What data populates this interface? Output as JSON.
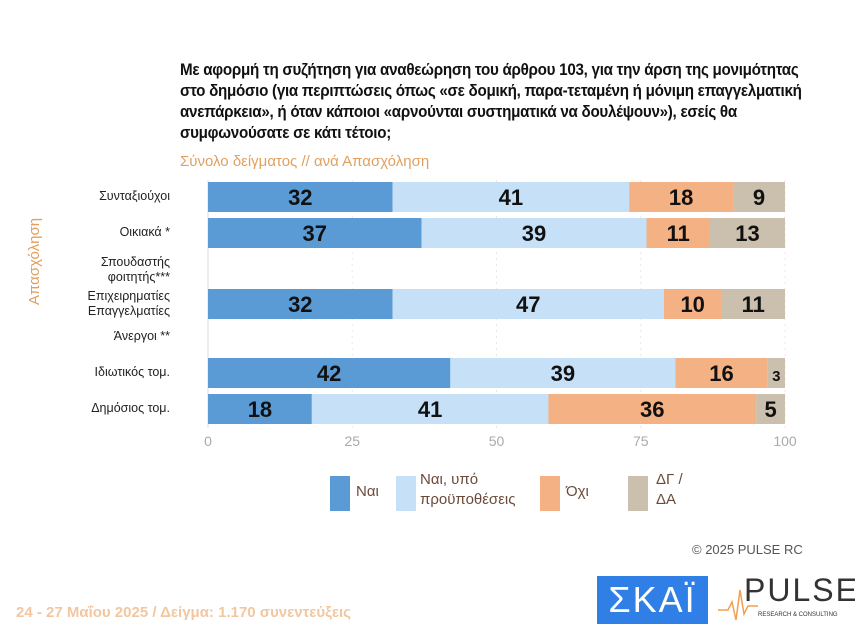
{
  "title": "Με αφορμή τη συζήτηση για αναθεώρηση του άρθρου 103, για την άρση της μονιμότητας στο δημόσιο (για περιπτώσεις όπως «σε δομική, παρα-τεταμένη ή μόνιμη επαγγελματική ανεπάρκεια», ή όταν κάποιοι «αρνούνται συστηματικά να δουλέψουν»), εσείς θα συμφωνούσατε σε κάτι τέτοιο;",
  "subtitle": "Σύνολο δείγματος // ανά Απασχόληση",
  "copyright": "© 2025 PULSE RC",
  "footer": "24 - 27 Μαΐου 2025  /  Δείγμα:  1.170 συνεντεύξεις",
  "logos": {
    "skai": "ΣΚΑΪ",
    "pulse": "PULSE",
    "pulse_sub": "RESEARCH & CONSULTING"
  },
  "chart_data": {
    "type": "bar",
    "stacked": true,
    "orientation": "horizontal",
    "ylabel": "Απασχόληση",
    "categories": [
      "Συνταξιούχοι",
      "Οικιακά *",
      "Σπουδαστής φοιτητής***",
      "Επιχειρηματίες Επαγγελματίες",
      "Άνεργοι **",
      "Ιδιωτικός τομ.",
      "Δημόσιος τομ."
    ],
    "series": [
      {
        "name": "Ναι",
        "color": "#5b9bd5",
        "values": [
          32,
          37,
          null,
          32,
          null,
          42,
          18
        ]
      },
      {
        "name": "Ναι, υπό προϋποθέσεις",
        "color": "#c6e0f7",
        "values": [
          41,
          39,
          null,
          47,
          null,
          39,
          41
        ]
      },
      {
        "name": "Όχι",
        "color": "#f4b183",
        "values": [
          18,
          11,
          null,
          10,
          null,
          16,
          36
        ]
      },
      {
        "name": "ΔΓ / ΔΑ",
        "color": "#cbbfae",
        "values": [
          9,
          13,
          null,
          11,
          null,
          3,
          5
        ]
      }
    ],
    "xlim": [
      0,
      100
    ],
    "xticks": [
      "0",
      "25",
      "50",
      "75",
      "100"
    ],
    "grid": true,
    "legend": "bottom"
  }
}
